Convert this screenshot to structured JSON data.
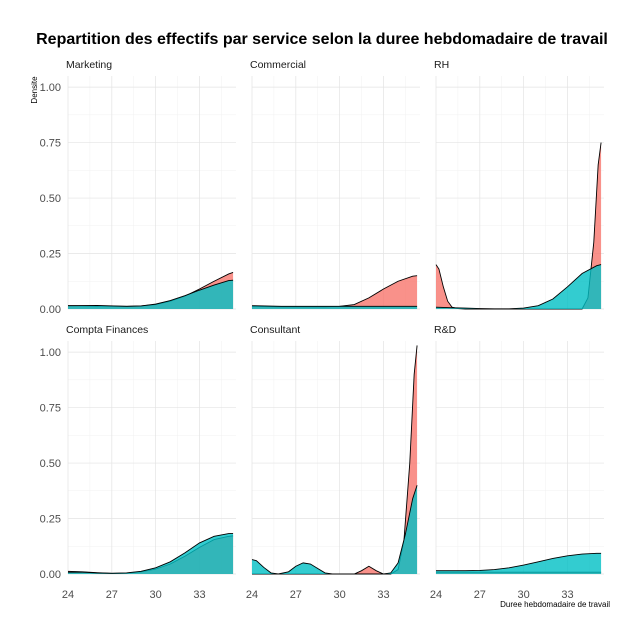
{
  "chart_data": {
    "type": "area",
    "title": "Repartition des effectifs par service selon la duree hebdomadaire de travail",
    "xlabel": "Duree hebdomadaire de travail",
    "ylabel": "Densite",
    "xlim": [
      24,
      35.5
    ],
    "ylim": [
      0,
      1.05
    ],
    "x_ticks": [
      24,
      27,
      30,
      33
    ],
    "y_ticks": [
      0,
      0.25,
      0.5,
      0.75,
      1.0
    ],
    "y_tick_labels": [
      "0.00",
      "0.25",
      "0.50",
      "0.75",
      "1.00"
    ],
    "x_tick_labels": [
      "24",
      "27",
      "30",
      "33"
    ],
    "grid": true,
    "colors": {
      "series_a": "#F8766D",
      "series_b": "#00BFC4",
      "outline": "#000000"
    },
    "panels": [
      {
        "name": "Marketing",
        "series": [
          {
            "x": [
              24,
              26,
              28,
              29,
              30,
              31,
              32,
              33,
              34,
              35,
              35.3
            ],
            "y": [
              0.015,
              0.013,
              0.012,
              0.014,
              0.02,
              0.035,
              0.058,
              0.09,
              0.125,
              0.158,
              0.165
            ]
          },
          {
            "x": [
              24,
              26,
              28,
              29,
              30,
              31,
              32,
              33,
              34,
              35,
              35.3
            ],
            "y": [
              0.015,
              0.016,
              0.012,
              0.014,
              0.022,
              0.038,
              0.06,
              0.085,
              0.108,
              0.128,
              0.13
            ]
          }
        ]
      },
      {
        "name": "Commercial",
        "series": [
          {
            "x": [
              24,
              26,
              28,
              29,
              30,
              31,
              32,
              33,
              34,
              35,
              35.3
            ],
            "y": [
              0.012,
              0.01,
              0.01,
              0.01,
              0.012,
              0.02,
              0.05,
              0.09,
              0.125,
              0.148,
              0.15
            ]
          },
          {
            "x": [
              24,
              26,
              28,
              30,
              32,
              34,
              35.3
            ],
            "y": [
              0.015,
              0.012,
              0.012,
              0.012,
              0.012,
              0.012,
              0.012
            ]
          }
        ]
      },
      {
        "name": "RH",
        "series": [
          {
            "x": [
              24,
              24.2,
              24.5,
              24.8,
              25.1,
              25.5,
              26,
              28,
              30,
              31,
              32,
              33,
              33.5,
              34,
              34.4,
              34.8,
              35.1,
              35.3
            ],
            "y": [
              0.2,
              0.18,
              0.1,
              0.035,
              0.008,
              0.002,
              0.0,
              0.0,
              0.0,
              0.0,
              0.0,
              0.0,
              0.0,
              0.0,
              0.05,
              0.3,
              0.65,
              0.75
            ]
          },
          {
            "x": [
              24,
              25,
              26,
              27,
              28,
              29,
              30,
              31,
              32,
              33,
              34,
              35,
              35.3
            ],
            "y": [
              0.008,
              0.006,
              0.004,
              0.002,
              0.001,
              0.001,
              0.004,
              0.015,
              0.045,
              0.1,
              0.16,
              0.195,
              0.2
            ]
          }
        ]
      },
      {
        "name": "Compta Finances",
        "series": [
          {
            "x": [
              24,
              25,
              26,
              27,
              28,
              29,
              30,
              31,
              32,
              33,
              34,
              35,
              35.3
            ],
            "y": [
              0.012,
              0.01,
              0.006,
              0.003,
              0.004,
              0.01,
              0.022,
              0.045,
              0.08,
              0.12,
              0.155,
              0.17,
              0.172
            ]
          },
          {
            "x": [
              24,
              25,
              26,
              27,
              28,
              29,
              30,
              31,
              32,
              33,
              34,
              35,
              35.3
            ],
            "y": [
              0.008,
              0.008,
              0.005,
              0.003,
              0.005,
              0.012,
              0.028,
              0.055,
              0.095,
              0.14,
              0.17,
              0.182,
              0.182
            ]
          }
        ]
      },
      {
        "name": "Consultant",
        "series": [
          {
            "x": [
              24,
              30,
              31,
              31.5,
              32,
              32.5,
              33,
              33.5,
              34,
              34.4,
              34.8,
              35.1,
              35.3
            ],
            "y": [
              0.0,
              0.0,
              0.0,
              0.015,
              0.035,
              0.015,
              0.0,
              0.0,
              0.02,
              0.15,
              0.5,
              0.9,
              1.03
            ]
          },
          {
            "x": [
              24,
              24.3,
              24.8,
              25.3,
              25.8,
              26.5,
              27,
              27.5,
              28,
              28.5,
              29,
              29.5,
              30,
              31,
              32,
              33,
              33.5,
              34,
              34.5,
              35,
              35.3
            ],
            "y": [
              0.065,
              0.06,
              0.03,
              0.005,
              0.0,
              0.01,
              0.035,
              0.05,
              0.045,
              0.025,
              0.005,
              0.0,
              0.0,
              0.0,
              0.0,
              0.0,
              0.005,
              0.05,
              0.18,
              0.34,
              0.4
            ]
          }
        ]
      },
      {
        "name": "R&D",
        "series": [
          {
            "x": [
              24,
              26,
              28,
              30,
              32,
              34,
              35.3
            ],
            "y": [
              0.008,
              0.008,
              0.008,
              0.008,
              0.008,
              0.008,
              0.008
            ]
          },
          {
            "x": [
              24,
              26,
              27,
              28,
              29,
              30,
              31,
              32,
              33,
              34,
              35,
              35.3
            ],
            "y": [
              0.015,
              0.015,
              0.016,
              0.02,
              0.028,
              0.04,
              0.055,
              0.07,
              0.082,
              0.09,
              0.093,
              0.093
            ]
          }
        ]
      }
    ]
  }
}
